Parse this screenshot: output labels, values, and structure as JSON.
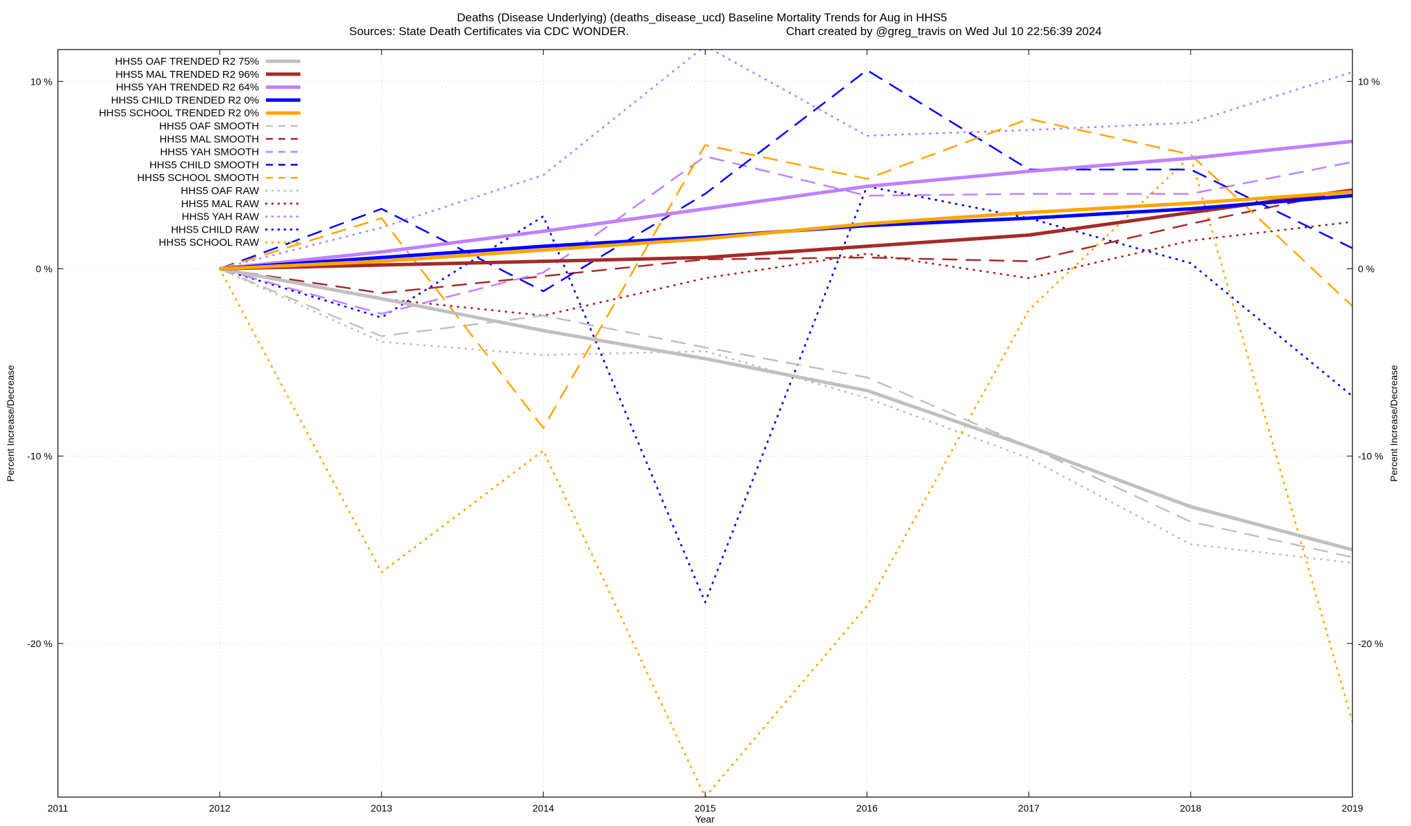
{
  "chart_data": {
    "type": "line",
    "title": "Deaths (Disease Underlying) (deaths_disease_ucd)  Baseline Mortality Trends for Aug in HHS5",
    "subtitle_sources": "Sources: State Death Certificates via CDC WONDER.",
    "subtitle_credit": "Chart created by @greg_travis on Wed Jul 10 22:56:39 2024",
    "xlabel": "Year",
    "ylabel": "Percent Increase/Decrease",
    "xlim": [
      2011,
      2019
    ],
    "ylim": [
      -28.2,
      11.7
    ],
    "x_ticks": [
      {
        "v": 2011,
        "label": "2011"
      },
      {
        "v": 2012,
        "label": "2012"
      },
      {
        "v": 2013,
        "label": "2013"
      },
      {
        "v": 2014,
        "label": "2014"
      },
      {
        "v": 2015,
        "label": "2015"
      },
      {
        "v": 2016,
        "label": "2016"
      },
      {
        "v": 2017,
        "label": "2017"
      },
      {
        "v": 2018,
        "label": "2018"
      },
      {
        "v": 2019,
        "label": "2019"
      }
    ],
    "y_ticks": [
      {
        "v": 10,
        "label": "10 %"
      },
      {
        "v": 0,
        "label": "0 %"
      },
      {
        "v": -10,
        "label": "-10 %"
      },
      {
        "v": -20,
        "label": "-20 %"
      }
    ],
    "grid": true,
    "legend_position": "top-left",
    "x": [
      2012,
      2013,
      2014,
      2015,
      2016,
      2017,
      2018,
      2019
    ],
    "series": [
      {
        "name": "HHS5 OAF TRENDED R2  75%",
        "style": "trend",
        "color": "#c0c0c0",
        "values": [
          0,
          -1.6,
          -3.3,
          -4.8,
          -6.5,
          -9.5,
          -12.7,
          -15.0
        ]
      },
      {
        "name": "HHS5 MAL TRENDED R2  96%",
        "style": "trend",
        "color": "#a52a2a",
        "values": [
          0,
          0.2,
          0.4,
          0.6,
          1.2,
          1.8,
          3.0,
          4.2
        ]
      },
      {
        "name": "HHS5 YAH TRENDED R2  64%",
        "style": "trend",
        "color": "#c080ff",
        "values": [
          0,
          0.9,
          2.0,
          3.2,
          4.4,
          5.2,
          5.9,
          6.8
        ]
      },
      {
        "name": "HHS5 CHILD TRENDED R2   0%",
        "style": "trend",
        "color": "#0000ff",
        "values": [
          0,
          0.6,
          1.2,
          1.7,
          2.3,
          2.7,
          3.2,
          3.9
        ]
      },
      {
        "name": "HHS5 SCHOOL TRENDED R2   0%",
        "style": "trend",
        "color": "#ffa500",
        "values": [
          0,
          0.4,
          1.0,
          1.6,
          2.4,
          3.0,
          3.5,
          4.1
        ]
      },
      {
        "name": "HHS5 OAF SMOOTH",
        "style": "smooth",
        "color": "#c0c0c0",
        "values": [
          0,
          -3.6,
          -2.5,
          -4.2,
          -5.8,
          -9.5,
          -13.5,
          -15.4
        ]
      },
      {
        "name": "HHS5 MAL SMOOTH",
        "style": "smooth",
        "color": "#a52a2a",
        "values": [
          0,
          -1.3,
          -0.4,
          0.5,
          0.6,
          0.4,
          2.4,
          4.2
        ]
      },
      {
        "name": "HHS5 YAH SMOOTH",
        "style": "smooth",
        "color": "#c080ff",
        "values": [
          0,
          -2.4,
          -0.2,
          6.0,
          3.9,
          4.0,
          4.0,
          5.7
        ]
      },
      {
        "name": "HHS5 CHILD SMOOTH",
        "style": "smooth",
        "color": "#0000ff",
        "values": [
          0,
          3.2,
          -1.2,
          4.0,
          10.6,
          5.3,
          5.3,
          1.1
        ]
      },
      {
        "name": "HHS5 SCHOOL SMOOTH",
        "style": "smooth",
        "color": "#ffa500",
        "values": [
          0,
          2.7,
          -8.5,
          6.6,
          4.8,
          8.0,
          6.1,
          -2.0
        ]
      },
      {
        "name": "HHS5 OAF RAW",
        "style": "raw",
        "color": "#c0c0c0",
        "values": [
          0,
          -3.9,
          -4.6,
          -4.4,
          -6.9,
          -10.1,
          -14.7,
          -15.7
        ]
      },
      {
        "name": "HHS5 MAL RAW",
        "style": "raw",
        "color": "#a52a2a",
        "values": [
          0,
          -1.6,
          -2.5,
          -0.5,
          0.8,
          -0.5,
          1.5,
          2.5
        ]
      },
      {
        "name": "HHS5 YAH RAW",
        "style": "raw",
        "color": "#c080ff",
        "values": [
          0,
          2.2,
          5.0,
          11.9,
          7.1,
          7.4,
          7.8,
          10.5
        ]
      },
      {
        "name": "HHS5 CHILD RAW",
        "style": "raw",
        "color": "#0000ff",
        "values": [
          0,
          -2.6,
          2.8,
          -17.8,
          4.4,
          2.7,
          0.3,
          -6.8
        ]
      },
      {
        "name": "HHS5 SCHOOL RAW",
        "style": "raw",
        "color": "#ffa500",
        "values": [
          0,
          -16.2,
          -9.7,
          -28.2,
          -18.0,
          -2.2,
          6.0,
          -24.2
        ]
      }
    ]
  }
}
